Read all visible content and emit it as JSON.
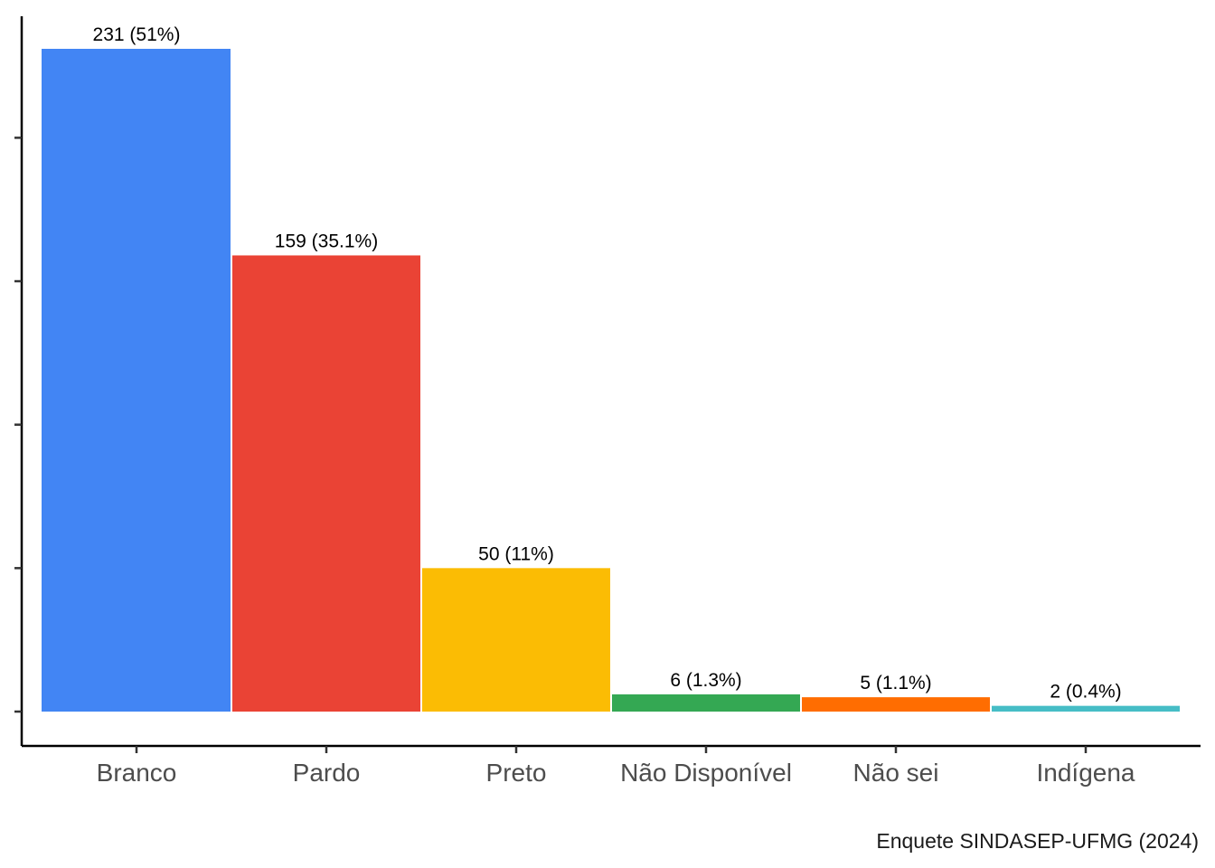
{
  "chart_data": {
    "type": "bar",
    "title": "",
    "xlabel": "",
    "ylabel": "",
    "categories": [
      "Branco",
      "Pardo",
      "Preto",
      "Não Disponível",
      "Não sei",
      "Indígena"
    ],
    "values": [
      231,
      159,
      50,
      6,
      5,
      2
    ],
    "data_labels": [
      "231 (51%)",
      "159 (35.1%)",
      "50 (11%)",
      "6 (1.3%)",
      "5 (1.1%)",
      "2 (0.4%)"
    ],
    "colors": [
      "#4285F4",
      "#EA4335",
      "#FBBC04",
      "#34A853",
      "#FF6D01",
      "#46BDC6"
    ],
    "ylim": [
      0,
      250
    ],
    "y_ticks": [
      0,
      50,
      100,
      150,
      200
    ],
    "y_tick_labels_shown": false,
    "grid": false,
    "legend": "none",
    "caption": "Enquete SINDASEP-UFMG (2024)"
  }
}
